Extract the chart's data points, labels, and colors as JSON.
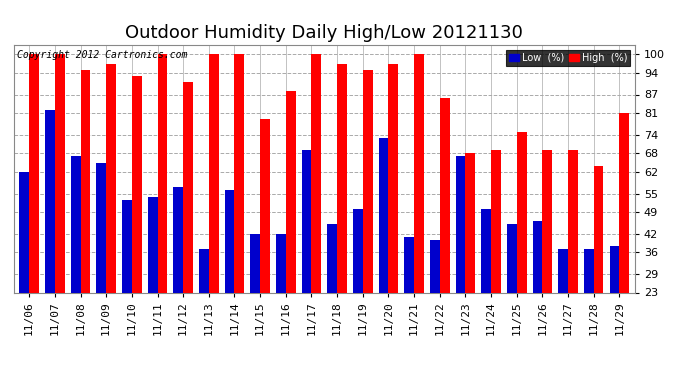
{
  "title": "Outdoor Humidity Daily High/Low 20121130",
  "copyright": "Copyright 2012 Cartronics.com",
  "dates": [
    "11/06",
    "11/07",
    "11/08",
    "11/09",
    "11/10",
    "11/11",
    "11/12",
    "11/13",
    "11/14",
    "11/15",
    "11/16",
    "11/17",
    "11/18",
    "11/19",
    "11/20",
    "11/21",
    "11/22",
    "11/23",
    "11/24",
    "11/25",
    "11/26",
    "11/27",
    "11/28",
    "11/29"
  ],
  "high": [
    100,
    100,
    95,
    97,
    93,
    100,
    91,
    100,
    100,
    79,
    88,
    100,
    97,
    95,
    97,
    100,
    86,
    68,
    69,
    75,
    69,
    69,
    64,
    81
  ],
  "low": [
    62,
    82,
    67,
    65,
    53,
    54,
    57,
    37,
    56,
    42,
    42,
    69,
    45,
    50,
    73,
    41,
    40,
    67,
    50,
    45,
    46,
    37,
    37,
    38
  ],
  "high_color": "#ff0000",
  "low_color": "#0000cc",
  "background_color": "#ffffff",
  "grid_color": "#aaaaaa",
  "yticks": [
    23,
    29,
    36,
    42,
    49,
    55,
    62,
    68,
    74,
    81,
    87,
    94,
    100
  ],
  "ylim_min": 23,
  "ylim_max": 103,
  "bar_width": 0.38,
  "legend_low_label": "Low  (%)",
  "legend_high_label": "High  (%)",
  "title_fontsize": 13,
  "tick_fontsize": 8,
  "copyright_fontsize": 7
}
